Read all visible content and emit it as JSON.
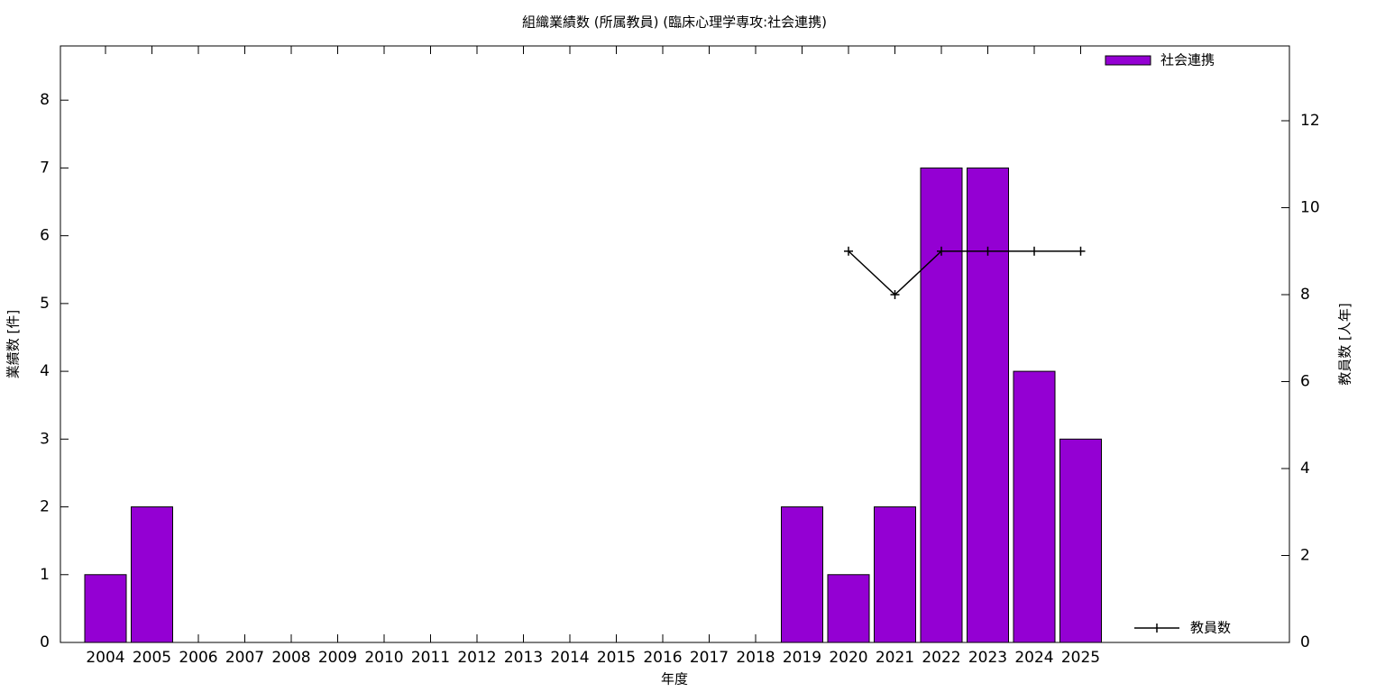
{
  "chart_data": {
    "type": "bar",
    "title": "組織業績数 (所属教員) (臨床心理学専攻:社会連携)",
    "x_label": "年度",
    "y_label": "業績数 [件]",
    "y2_label": "教員数 [人年]",
    "categories": [
      "2004",
      "2005",
      "2006",
      "2007",
      "2008",
      "2009",
      "2010",
      "2011",
      "2012",
      "2013",
      "2014",
      "2015",
      "2016",
      "2017",
      "2018",
      "2019",
      "2020",
      "2021",
      "2022",
      "2023",
      "2024",
      "2025"
    ],
    "series": [
      {
        "name": "社会連携",
        "type": "bar",
        "color": "#9400d3",
        "values": [
          1,
          2,
          0,
          0,
          0,
          0,
          0,
          0,
          0,
          0,
          0,
          0,
          0,
          0,
          0,
          2,
          1,
          2,
          7,
          7,
          4,
          3
        ]
      },
      {
        "name": "教員数",
        "type": "line",
        "axis": "y2",
        "color": "#000000",
        "values": [
          null,
          null,
          null,
          null,
          null,
          null,
          null,
          null,
          null,
          null,
          null,
          null,
          null,
          null,
          null,
          null,
          9,
          8,
          9,
          9,
          9,
          9
        ]
      }
    ],
    "ylim": [
      0,
      8.8
    ],
    "yticks": [
      0,
      1,
      2,
      3,
      4,
      5,
      6,
      7,
      8
    ],
    "y2lim": [
      0,
      13.72
    ],
    "y2ticks": [
      0,
      2,
      4,
      6,
      8,
      10,
      12
    ],
    "grid": false
  }
}
